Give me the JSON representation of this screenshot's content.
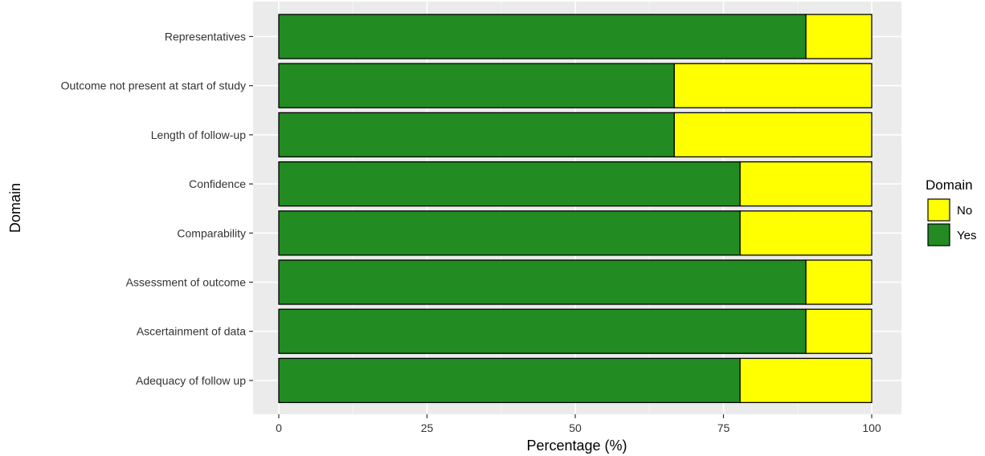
{
  "chart_data": {
    "type": "bar",
    "orientation": "horizontal",
    "stacked": true,
    "title": "",
    "xlabel": "Percentage (%)",
    "ylabel": "Domain",
    "xlim": [
      0,
      100
    ],
    "xticks": [
      0,
      25,
      50,
      75,
      100
    ],
    "grid": true,
    "legend": {
      "title": "Domain",
      "position": "right"
    },
    "categories": [
      "Representatives",
      "Outcome not present at start of study",
      "Length of follow-up",
      "Confidence",
      "Comparability",
      "Assessment of outcome",
      "Ascertainment of data",
      "Adequacy of follow up"
    ],
    "series": [
      {
        "name": "Yes",
        "color": "#228B22",
        "values": [
          88.9,
          66.7,
          66.7,
          77.8,
          77.8,
          88.9,
          88.9,
          77.8
        ]
      },
      {
        "name": "No",
        "color": "#FFFF00",
        "values": [
          11.1,
          33.3,
          33.3,
          22.2,
          22.2,
          11.1,
          11.1,
          22.2
        ]
      }
    ],
    "legend_order": [
      "No",
      "Yes"
    ]
  }
}
